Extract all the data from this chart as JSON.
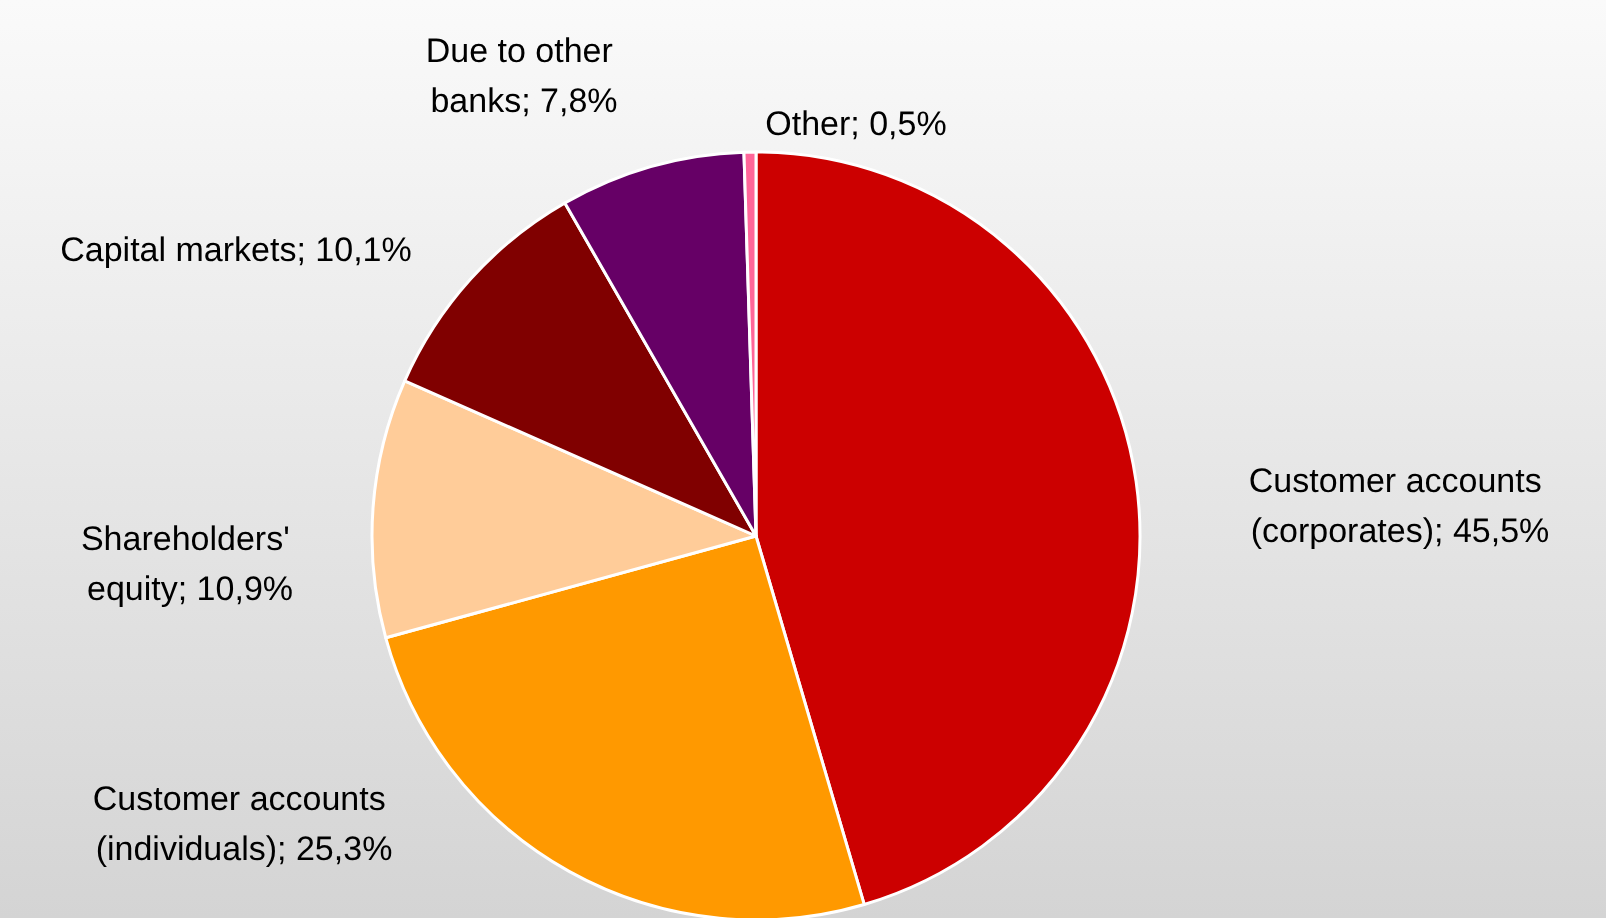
{
  "chart_data": {
    "type": "pie",
    "categories": [
      "Customer accounts (corporates)",
      "Customer accounts (individuals)",
      "Shareholders' equity",
      "Capital markets",
      "Due to other banks",
      "Other"
    ],
    "values": [
      45.5,
      25.3,
      10.9,
      10.1,
      7.8,
      0.5
    ],
    "value_labels": [
      "45,5%",
      "25,3%",
      "10,9%",
      "10,1%",
      "7,8%",
      "0,5%"
    ],
    "colors": [
      "#cc0000",
      "#ff9900",
      "#ffcc99",
      "#800000",
      "#660066",
      "#ff6699"
    ],
    "legend": false
  }
}
